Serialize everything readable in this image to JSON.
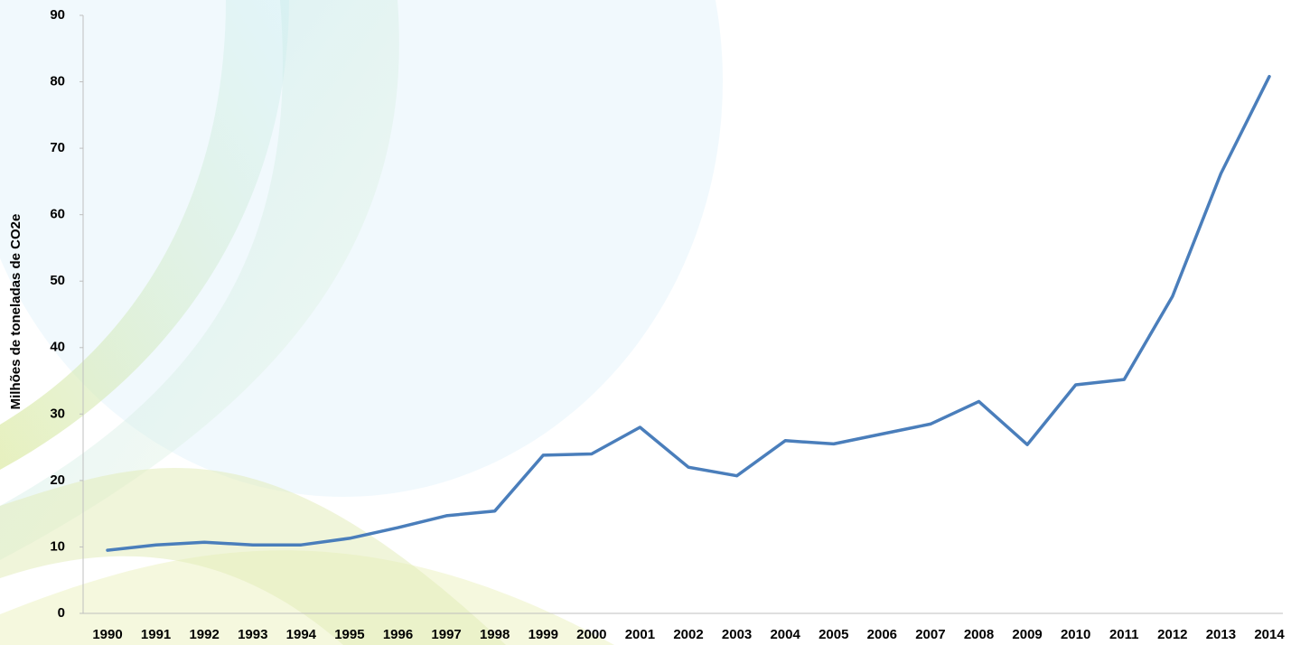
{
  "chart_data": {
    "type": "line",
    "y_label": "Milhões de toneladas de CO2e",
    "categories": [
      "1990",
      "1991",
      "1992",
      "1993",
      "1994",
      "1995",
      "1996",
      "1997",
      "1998",
      "1999",
      "2000",
      "2001",
      "2002",
      "2003",
      "2004",
      "2005",
      "2006",
      "2007",
      "2008",
      "2009",
      "2010",
      "2011",
      "2012",
      "2013",
      "2014"
    ],
    "values": [
      9.5,
      10.3,
      10.7,
      10.3,
      10.3,
      11.3,
      12.9,
      14.7,
      15.4,
      23.8,
      24.0,
      28.0,
      22.0,
      20.7,
      26.0,
      25.5,
      27.0,
      28.5,
      31.9,
      25.4,
      34.4,
      35.2,
      47.7,
      66.2,
      80.8
    ],
    "color": "#4a7ebb",
    "ylim": [
      0,
      90
    ],
    "yticks": [
      0,
      10,
      20,
      30,
      40,
      50,
      60,
      70,
      80,
      90
    ],
    "grid": false
  }
}
